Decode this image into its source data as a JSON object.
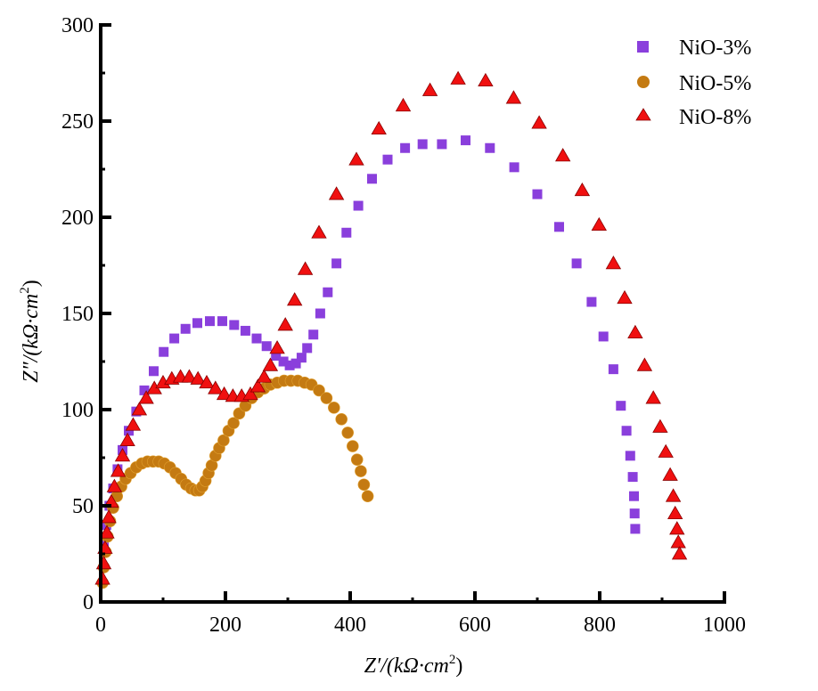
{
  "chart_data": {
    "type": "scatter",
    "title": "",
    "xlabel": "Z′/(kΩ·cm²)",
    "xlabel_parts": {
      "var": "Z′/(kΩ·cm",
      "sup": "2",
      "end": ")"
    },
    "ylabel": "Z″/(kΩ·cm²)",
    "ylabel_parts": {
      "var": "Z″/(kΩ·cm",
      "sup": "2",
      "end": ")"
    },
    "xlim": [
      0,
      1000
    ],
    "ylim": [
      0,
      300
    ],
    "x_ticks": [
      "0",
      "200",
      "400",
      "600",
      "800",
      "1000"
    ],
    "x_tick_values": [
      0,
      200,
      400,
      600,
      800,
      1000
    ],
    "y_ticks": [
      "0",
      "50",
      "100",
      "150",
      "200",
      "250",
      "300"
    ],
    "y_tick_values": [
      0,
      50,
      100,
      150,
      200,
      250,
      300
    ],
    "grid": false,
    "legend_position": "top-right",
    "series": [
      {
        "name": "NiO-3%",
        "marker": "square",
        "color": "#8a3fdc",
        "x": [
          5,
          9,
          14,
          20,
          27,
          35,
          45,
          57,
          70,
          85,
          101,
          118,
          136,
          155,
          175,
          195,
          214,
          232,
          250,
          266,
          281,
          293,
          303,
          313,
          322,
          331,
          341,
          352,
          364,
          378,
          394,
          413,
          435,
          460,
          488,
          516,
          547,
          585,
          624,
          663,
          700,
          735,
          763,
          787,
          806,
          822,
          834,
          843,
          849,
          853,
          855,
          856,
          857
        ],
        "y": [
          30,
          40,
          50,
          59,
          69,
          79,
          89,
          99,
          110,
          120,
          130,
          137,
          142,
          145,
          146,
          146,
          144,
          141,
          137,
          133,
          128,
          125,
          123,
          124,
          127,
          132,
          139,
          150,
          161,
          176,
          192,
          206,
          220,
          230,
          236,
          238,
          238,
          240,
          236,
          226,
          212,
          195,
          176,
          156,
          138,
          121,
          102,
          89,
          76,
          65,
          55,
          46,
          38
        ]
      },
      {
        "name": "NiO-5%",
        "marker": "circle",
        "color": "#c47a12",
        "x": [
          3,
          5,
          8,
          11,
          15,
          20,
          26,
          33,
          40,
          48,
          57,
          66,
          75,
          84,
          93,
          102,
          111,
          120,
          129,
          137,
          145,
          152,
          158,
          163,
          168,
          173,
          178,
          184,
          190,
          197,
          205,
          213,
          222,
          232,
          242,
          252,
          262,
          272,
          283,
          294,
          305,
          316,
          327,
          338,
          350,
          362,
          374,
          386,
          396,
          404,
          411,
          417,
          422,
          428
        ],
        "y": [
          10,
          18,
          26,
          34,
          42,
          49,
          55,
          60,
          64,
          67,
          70,
          72,
          73,
          73,
          73,
          72,
          70,
          67,
          64,
          61,
          59,
          58,
          58,
          60,
          63,
          67,
          71,
          76,
          80,
          84,
          89,
          93,
          98,
          102,
          106,
          109,
          111,
          113,
          114,
          115,
          115,
          115,
          114,
          113,
          110,
          106,
          101,
          95,
          88,
          81,
          74,
          68,
          61,
          55
        ]
      },
      {
        "name": "NiO-8%",
        "marker": "triangle",
        "color": "#f01010",
        "x": [
          3,
          5,
          7,
          10,
          13,
          17,
          22,
          28,
          35,
          43,
          52,
          62,
          73,
          86,
          100,
          114,
          128,
          142,
          156,
          170,
          184,
          198,
          212,
          226,
          240,
          252,
          262,
          272,
          283,
          296,
          311,
          328,
          350,
          378,
          410,
          446,
          485,
          528,
          573,
          617,
          662,
          703,
          741,
          772,
          799,
          822,
          840,
          857,
          872,
          886,
          897,
          906,
          913,
          918,
          921,
          924,
          926,
          928
        ],
        "y": [
          12,
          20,
          28,
          36,
          44,
          52,
          60,
          68,
          76,
          84,
          92,
          100,
          106,
          111,
          114,
          116,
          117,
          117,
          116,
          114,
          111,
          108,
          107,
          107,
          108,
          112,
          117,
          123,
          132,
          144,
          157,
          173,
          192,
          212,
          230,
          246,
          258,
          266,
          272,
          271,
          262,
          249,
          232,
          214,
          196,
          176,
          158,
          140,
          123,
          106,
          91,
          78,
          66,
          55,
          46,
          38,
          31,
          25
        ]
      }
    ]
  }
}
